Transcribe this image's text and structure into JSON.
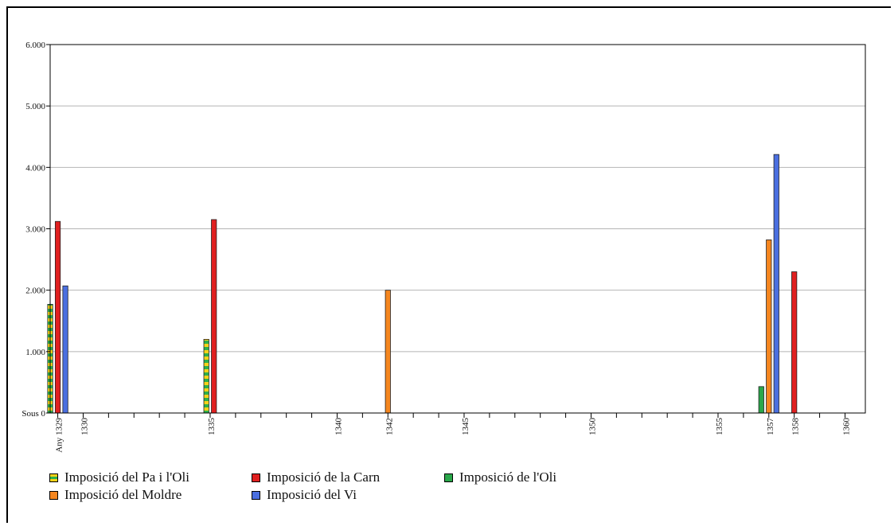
{
  "colors": {
    "pa_oli_a": "#2db04b",
    "pa_oli_b": "#f7d117",
    "carn": "#e02020",
    "oli": "#2aa74a",
    "moldre": "#f5861f",
    "vi": "#4a6fe0",
    "grid": "#b5b5b5",
    "axis": "#000000"
  },
  "chart_data": {
    "type": "bar",
    "xlabel": "Any",
    "ylabel": "Sous",
    "ylim": [
      0,
      6000
    ],
    "y_ticks": [
      "Sous 0",
      "1.000",
      "2.000",
      "3.000",
      "4.000",
      "5.000",
      "6.000"
    ],
    "x_range": [
      1328.7,
      1360.8
    ],
    "x_ticks": [
      "1329",
      "1330",
      "1335",
      "1340",
      "1342",
      "1345",
      "1350",
      "1355",
      "1357",
      "1358",
      "1360"
    ],
    "grid": true,
    "legend_position": "bottom",
    "series": [
      {
        "name": "Imposició del Pa i l'Oli",
        "color_key": "pa_oli_a",
        "pattern": true,
        "points": [
          {
            "x": 1329,
            "y": 1770
          },
          {
            "x": 1335,
            "y": 1200
          }
        ]
      },
      {
        "name": "Imposició de la Carn",
        "color_key": "carn",
        "points": [
          {
            "x": 1329,
            "y": 3120
          },
          {
            "x": 1335,
            "y": 3150
          },
          {
            "x": 1358,
            "y": 2300
          }
        ]
      },
      {
        "name": "Imposició de l'Oli",
        "color_key": "oli",
        "points": [
          {
            "x": 1357,
            "y": 430
          }
        ]
      },
      {
        "name": "Imposició del Moldre",
        "color_key": "moldre",
        "points": [
          {
            "x": 1342,
            "y": 2000
          },
          {
            "x": 1357,
            "y": 2820
          }
        ]
      },
      {
        "name": "Imposició del Vi",
        "color_key": "vi",
        "points": [
          {
            "x": 1329,
            "y": 2070
          },
          {
            "x": 1357,
            "y": 4210
          }
        ]
      }
    ]
  }
}
